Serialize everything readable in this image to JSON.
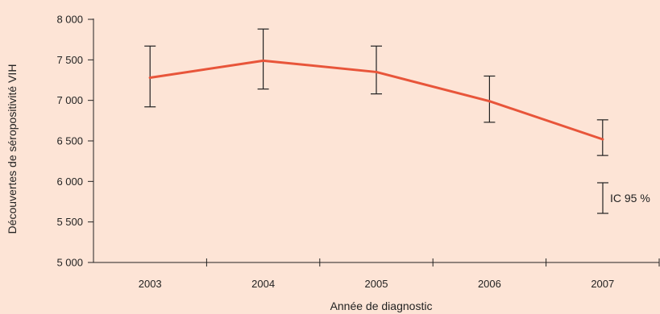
{
  "chart_data": {
    "type": "line",
    "xlabel": "Année de diagnostic",
    "ylabel": "Découvertes de séropositivité VIH",
    "categories": [
      "2003",
      "2004",
      "2005",
      "2006",
      "2007"
    ],
    "series": [
      {
        "values": [
          7280,
          7490,
          7350,
          6990,
          6520
        ],
        "ci_lower": [
          6920,
          7140,
          7080,
          6730,
          6320
        ],
        "ci_upper": [
          7670,
          7880,
          7670,
          7300,
          6760
        ]
      }
    ],
    "ylim": [
      5000,
      8000
    ],
    "yticks": [
      5000,
      5500,
      6000,
      6500,
      7000,
      7500,
      8000
    ],
    "ytick_labels": [
      "5 000",
      "5 500",
      "6 000",
      "6 500",
      "7 000",
      "7 500",
      "8 000"
    ],
    "legend": {
      "label": "IC 95 %",
      "placement": "right"
    },
    "grid": false,
    "colors": {
      "line": "#e8553a",
      "errorbar": "#222222",
      "axis": "#222222",
      "background": "#fde4d6"
    }
  }
}
